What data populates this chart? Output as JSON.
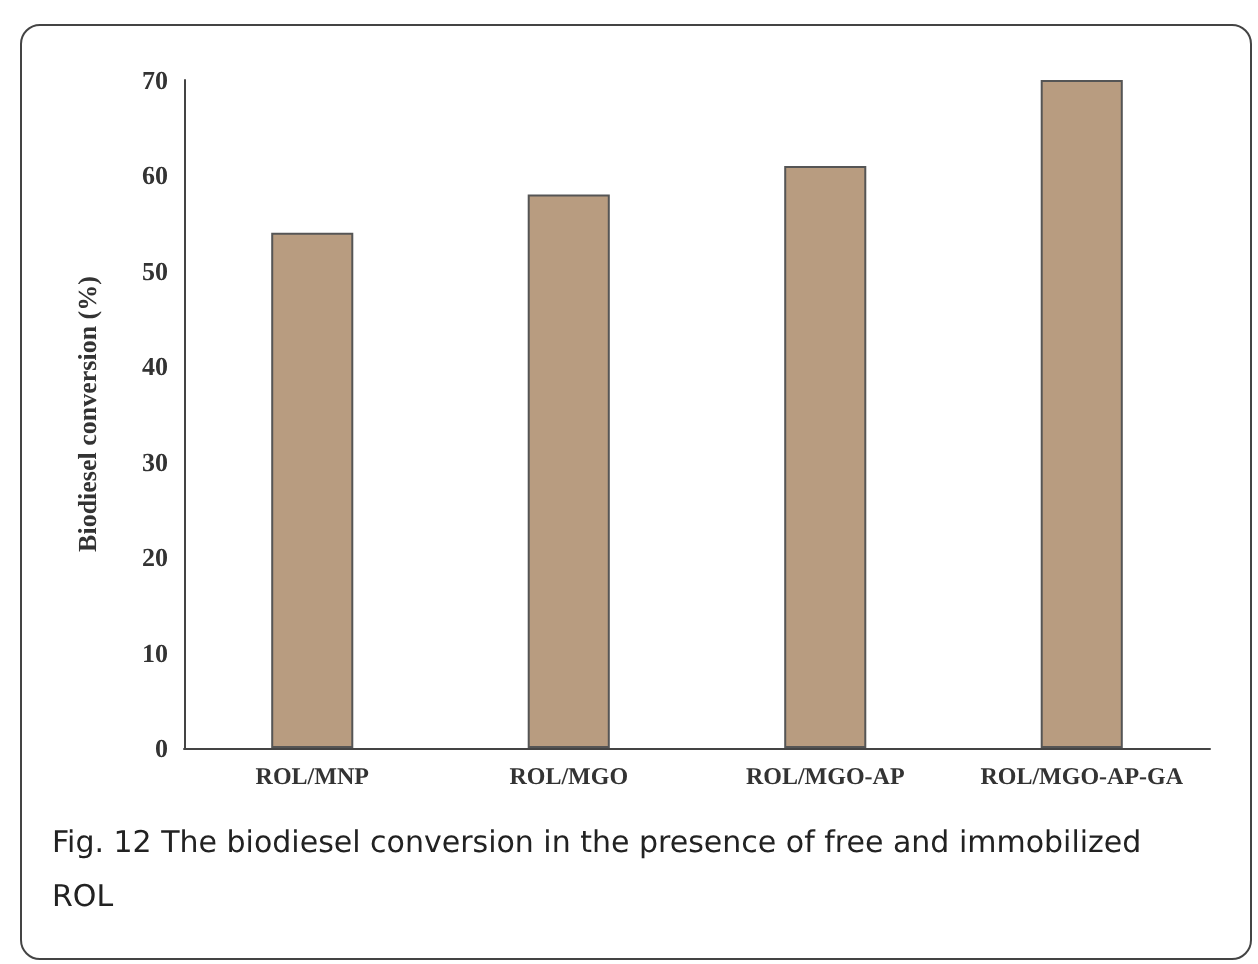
{
  "chart_data": {
    "type": "bar",
    "ylabel": "Biodiesel conversion (%)",
    "categories": [
      "ROL/MNP",
      "ROL/MGO",
      "ROL/MGO-AP",
      "ROL/MGO-AP-GA"
    ],
    "values": [
      54,
      58,
      61,
      70
    ],
    "color": "#b89c80",
    "ylim": [
      0,
      70
    ],
    "yticks": [
      0,
      10,
      20,
      30,
      40,
      50,
      60,
      70
    ],
    "grid": false,
    "annotations": [
      "Fig. 12  The biodiesel conversion in the presence of free and immobilized ROL"
    ]
  }
}
